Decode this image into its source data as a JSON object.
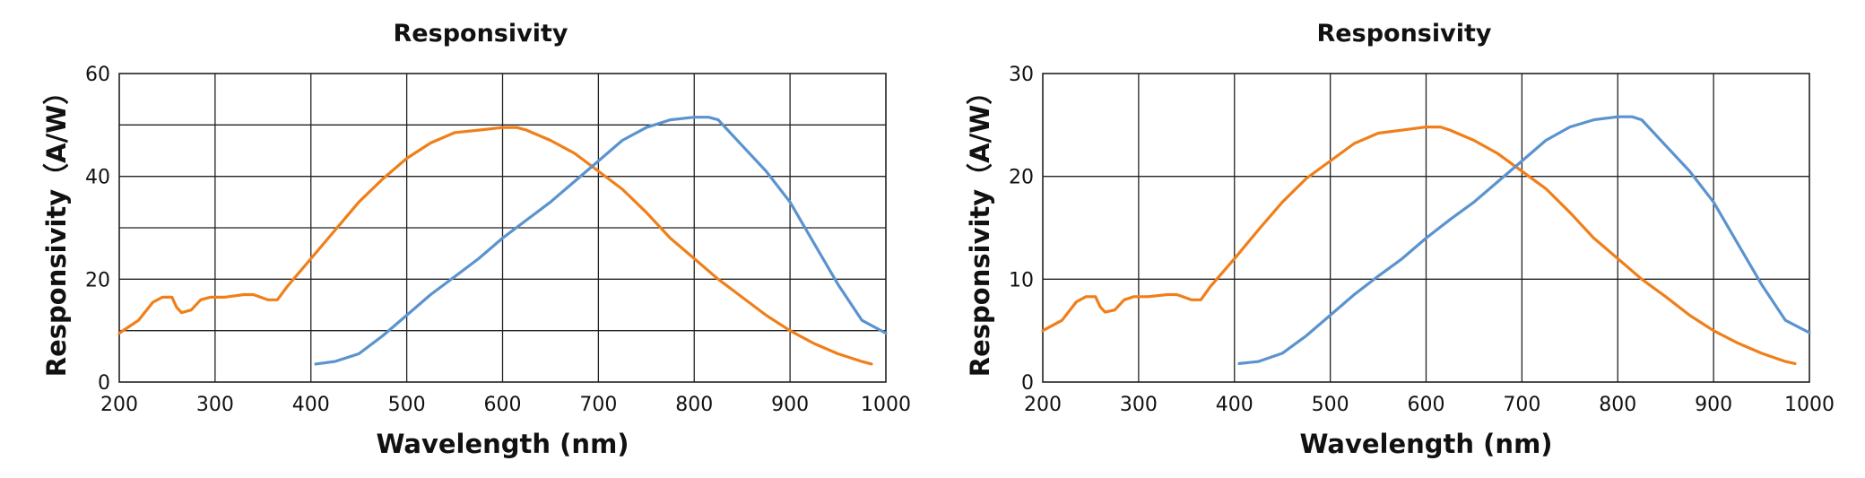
{
  "chart_data": [
    {
      "type": "line",
      "title": "Responsivity",
      "xlabel": "Wavelength (nm)",
      "ylabel": "Responsivity（A/W）",
      "xlim": [
        200,
        1000
      ],
      "ylim": [
        0,
        60
      ],
      "xticks": [
        "200",
        "300",
        "400",
        "500",
        "600",
        "700",
        "800",
        "900",
        "1000"
      ],
      "yticks": [
        "0",
        "20",
        "40",
        "60"
      ],
      "grid": true,
      "series": [
        {
          "color": "#f07f1a",
          "x": [
            200,
            220,
            235,
            245,
            255,
            260,
            265,
            275,
            285,
            295,
            310,
            330,
            340,
            355,
            365,
            375,
            400,
            425,
            450,
            475,
            500,
            525,
            550,
            575,
            600,
            615,
            625,
            650,
            675,
            700,
            725,
            750,
            775,
            800,
            825,
            850,
            875,
            900,
            925,
            950,
            975,
            985
          ],
          "y": [
            9.5,
            12,
            15.5,
            16.5,
            16.5,
            14.5,
            13.5,
            14,
            16,
            16.5,
            16.5,
            17,
            17,
            16,
            16,
            18.5,
            24,
            29.5,
            35,
            39.5,
            43.5,
            46.5,
            48.5,
            49,
            49.5,
            49.5,
            49,
            47,
            44.5,
            41,
            37.5,
            33,
            28,
            24,
            20,
            16.5,
            13,
            10,
            7.5,
            5.5,
            4,
            3.5
          ]
        },
        {
          "color": "#5b93cf",
          "x": [
            405,
            425,
            450,
            475,
            500,
            525,
            550,
            575,
            600,
            625,
            650,
            675,
            700,
            725,
            750,
            775,
            800,
            815,
            825,
            850,
            875,
            900,
            925,
            950,
            975,
            1000
          ],
          "y": [
            3.5,
            4,
            5.5,
            9,
            13,
            17,
            20.5,
            24,
            28,
            31.5,
            35,
            39,
            43,
            47,
            49.5,
            51,
            51.5,
            51.5,
            51,
            46,
            41,
            35,
            27,
            19,
            12,
            9.5
          ]
        }
      ]
    },
    {
      "type": "line",
      "title": "Responsivity",
      "xlabel": "Wavelength (nm)",
      "ylabel": "Responsivity（A/W）",
      "xlim": [
        200,
        1000
      ],
      "ylim": [
        0,
        30
      ],
      "xticks": [
        "200",
        "300",
        "400",
        "500",
        "600",
        "700",
        "800",
        "900",
        "1000"
      ],
      "yticks": [
        "0",
        "10",
        "20",
        "30"
      ],
      "grid": true,
      "series": [
        {
          "color": "#f07f1a",
          "x": [
            200,
            220,
            235,
            245,
            255,
            260,
            265,
            275,
            285,
            295,
            310,
            330,
            340,
            355,
            365,
            375,
            400,
            425,
            450,
            475,
            500,
            525,
            550,
            575,
            600,
            615,
            625,
            650,
            675,
            700,
            725,
            750,
            775,
            800,
            825,
            850,
            875,
            900,
            925,
            950,
            975,
            985
          ],
          "y": [
            5,
            6,
            7.8,
            8.3,
            8.3,
            7.3,
            6.8,
            7,
            8,
            8.3,
            8.3,
            8.5,
            8.5,
            8,
            8,
            9.3,
            12,
            14.8,
            17.5,
            19.8,
            21.5,
            23.2,
            24.2,
            24.5,
            24.8,
            24.8,
            24.5,
            23.5,
            22.2,
            20.5,
            18.8,
            16.5,
            14,
            12,
            10,
            8.3,
            6.5,
            5,
            3.8,
            2.8,
            2,
            1.8
          ]
        },
        {
          "color": "#5b93cf",
          "x": [
            405,
            425,
            450,
            475,
            500,
            525,
            550,
            575,
            600,
            625,
            650,
            675,
            700,
            725,
            750,
            775,
            800,
            815,
            825,
            850,
            875,
            900,
            925,
            950,
            975,
            1000
          ],
          "y": [
            1.8,
            2,
            2.8,
            4.5,
            6.5,
            8.5,
            10.3,
            12,
            14,
            15.8,
            17.5,
            19.5,
            21.5,
            23.5,
            24.8,
            25.5,
            25.8,
            25.8,
            25.5,
            23,
            20.5,
            17.5,
            13.5,
            9.5,
            6,
            4.8
          ]
        }
      ]
    }
  ]
}
